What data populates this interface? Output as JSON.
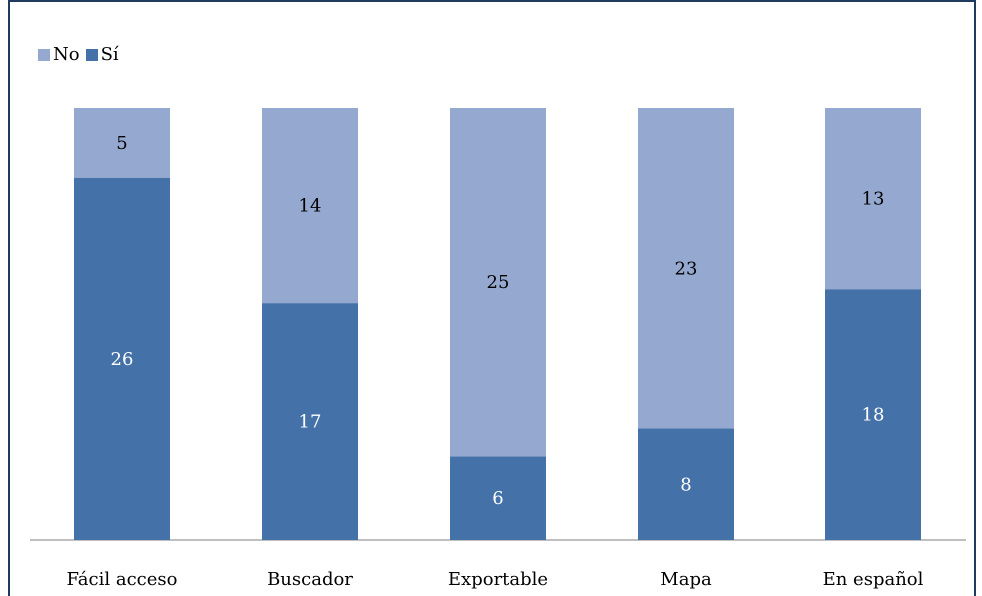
{
  "legend": [
    {
      "name": "No",
      "color": "#95a9d0"
    },
    {
      "name": "Sí",
      "color": "#4472a8"
    }
  ],
  "chart_data": {
    "type": "bar",
    "stacked": true,
    "categories": [
      "Fácil acceso",
      "Buscador",
      "Exportable",
      "Mapa",
      "En español"
    ],
    "series": [
      {
        "name": "Sí",
        "values": [
          26,
          17,
          6,
          8,
          18
        ],
        "color": "#4472a8",
        "label_color": "#ffffff"
      },
      {
        "name": "No",
        "values": [
          5,
          14,
          25,
          23,
          13
        ],
        "color": "#95a9d0",
        "label_color": "#000000"
      }
    ],
    "ylim": [
      0,
      31
    ],
    "grid": false,
    "legend_position": "top-left",
    "data_labels": true
  }
}
